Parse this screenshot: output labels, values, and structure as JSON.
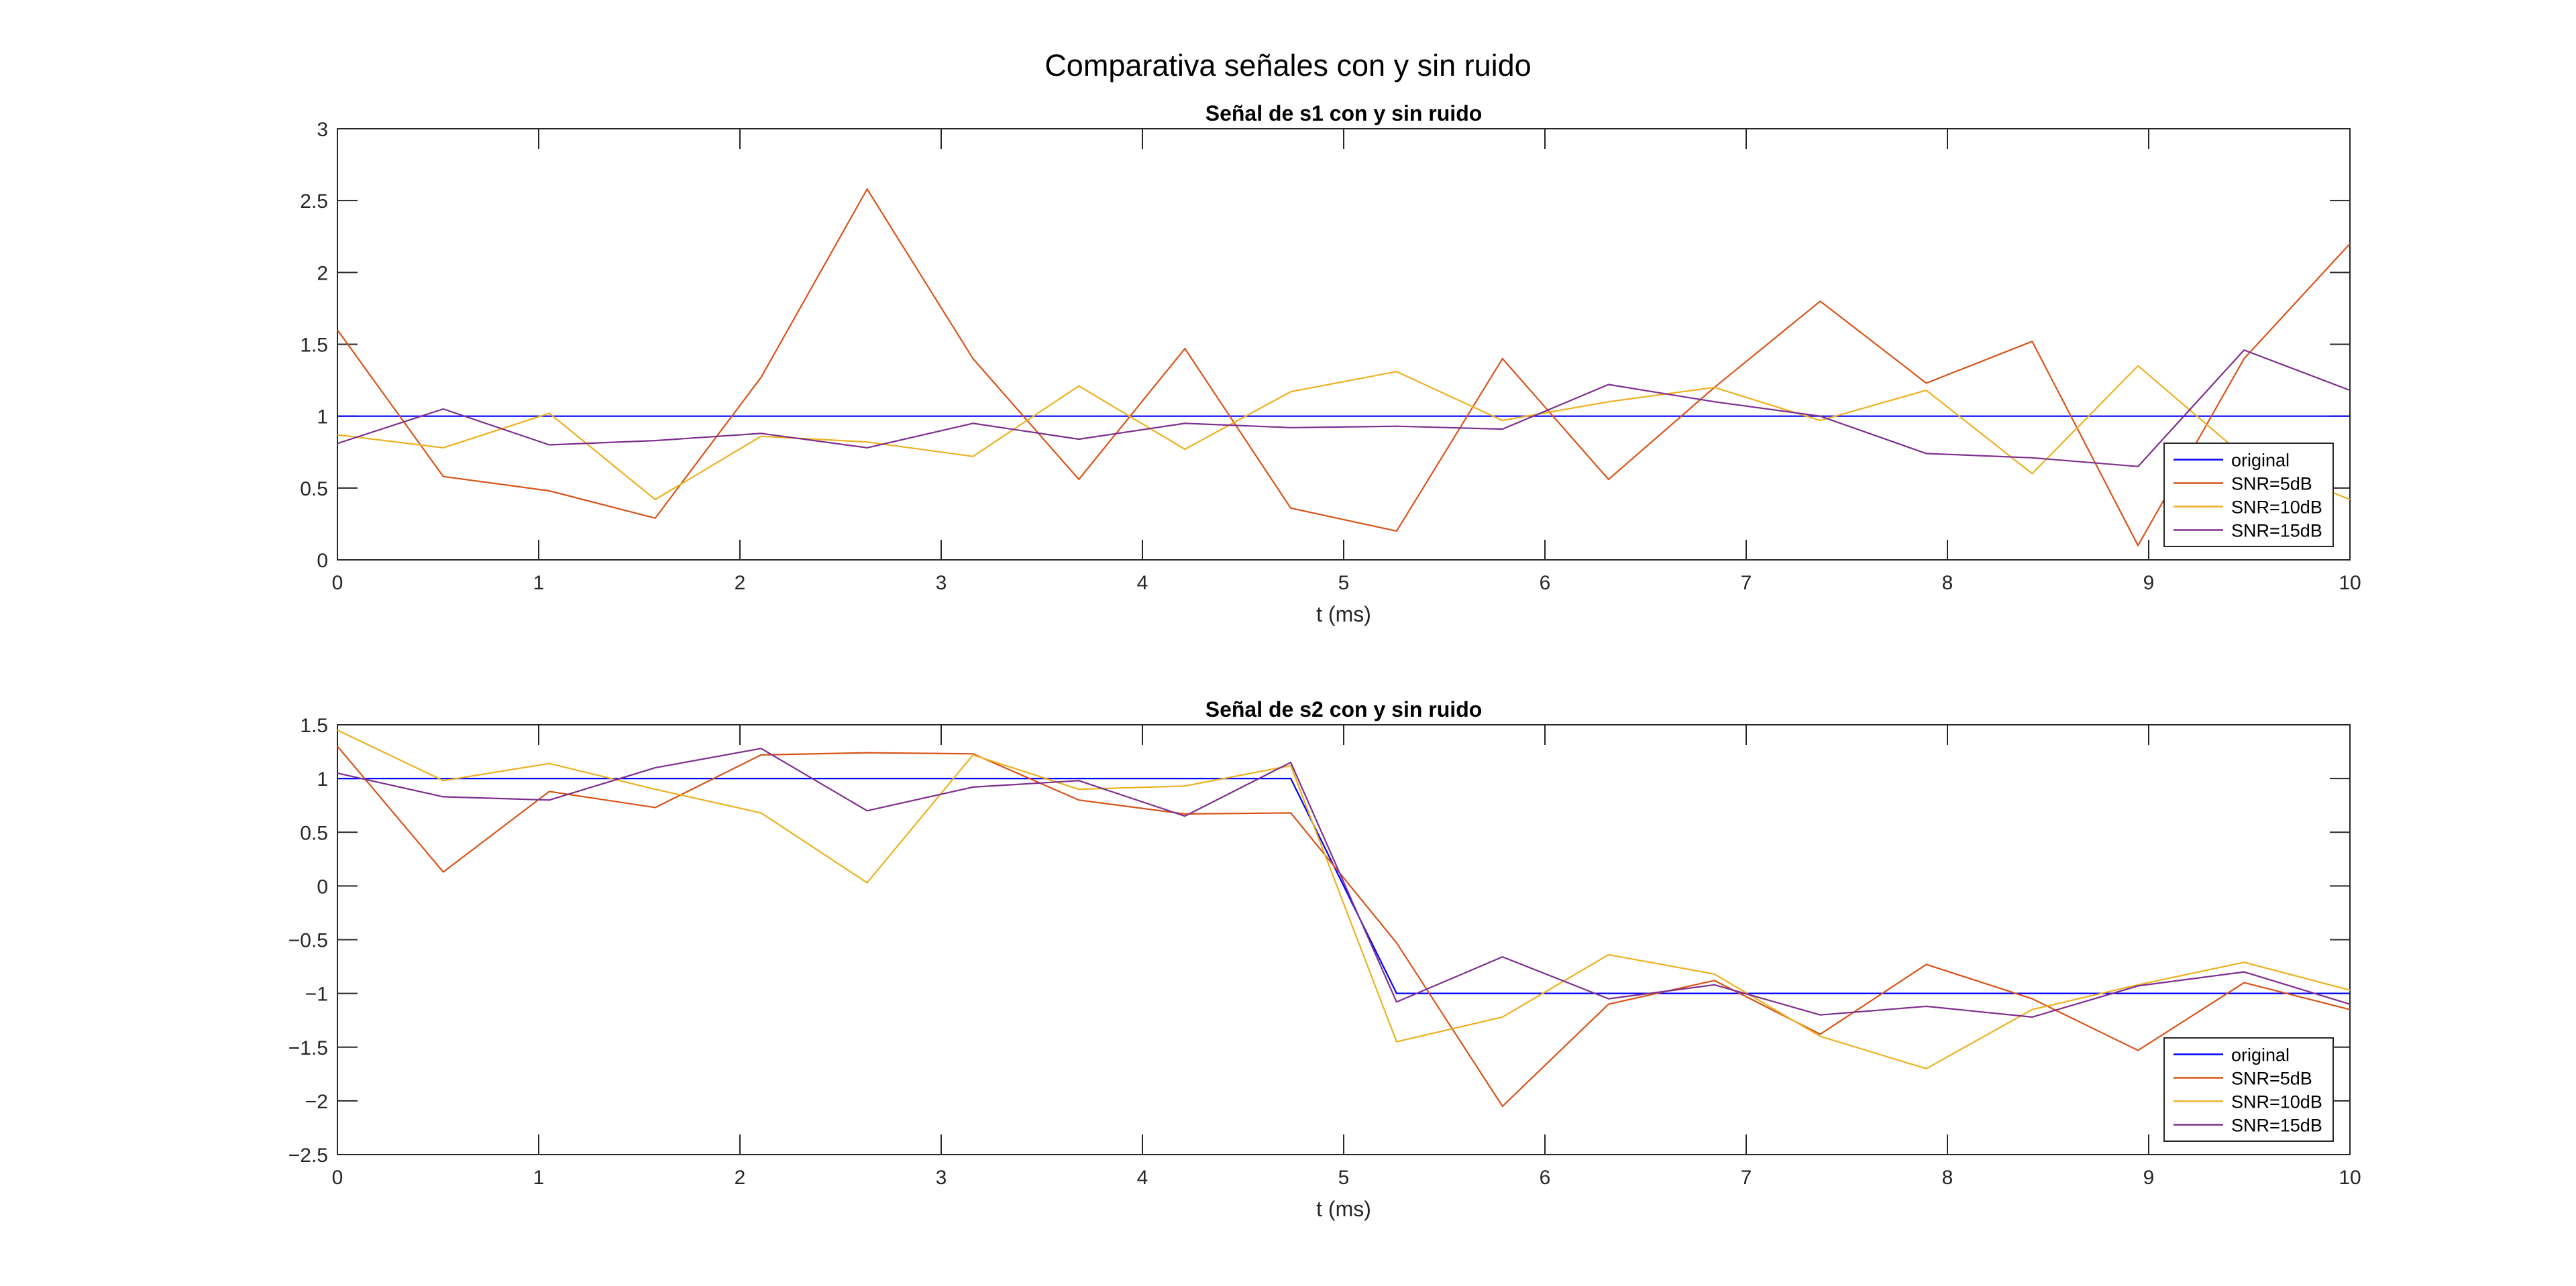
{
  "figure": {
    "title": "Comparativa señales con y sin ruido"
  },
  "chart_data": [
    {
      "type": "line",
      "title": "Señal de s1 con y sin ruido",
      "xlabel": "t (ms)",
      "ylabel": "",
      "xlim": [
        0,
        10
      ],
      "ylim": [
        0,
        3
      ],
      "xticks": [
        0,
        1,
        2,
        3,
        4,
        5,
        6,
        7,
        8,
        9,
        10
      ],
      "yticks": [
        0,
        0.5,
        1,
        1.5,
        2,
        2.5,
        3
      ],
      "legend_position": "bottom-right",
      "grid": false,
      "x": [
        0,
        0.526,
        1.053,
        1.579,
        2.105,
        2.632,
        3.158,
        3.684,
        4.211,
        4.737,
        5.263,
        5.789,
        6.316,
        6.842,
        7.368,
        7.895,
        8.421,
        8.947,
        9.474,
        10
      ],
      "series": [
        {
          "name": "original",
          "color": "#0000ff",
          "values": [
            1,
            1,
            1,
            1,
            1,
            1,
            1,
            1,
            1,
            1,
            1,
            1,
            1,
            1,
            1,
            1,
            1,
            1,
            1,
            1
          ]
        },
        {
          "name": "SNR=5dB",
          "color": "#d95319",
          "values": [
            1.6,
            0.58,
            0.48,
            0.29,
            1.27,
            2.58,
            1.4,
            0.56,
            1.47,
            0.36,
            0.2,
            1.4,
            0.56,
            1.2,
            1.8,
            1.23,
            1.52,
            0.1,
            1.4,
            2.2
          ]
        },
        {
          "name": "SNR=10dB",
          "color": "#edb120",
          "values": [
            0.87,
            0.78,
            1.02,
            0.42,
            0.86,
            0.82,
            0.72,
            1.21,
            0.77,
            1.17,
            1.31,
            0.97,
            1.1,
            1.2,
            0.97,
            1.18,
            0.6,
            1.35,
            0.72,
            0.42
          ]
        },
        {
          "name": "SNR=15dB",
          "color": "#7e2f8e",
          "values": [
            0.81,
            1.05,
            0.8,
            0.83,
            0.88,
            0.78,
            0.95,
            0.84,
            0.95,
            0.92,
            0.93,
            0.91,
            1.22,
            1.1,
            1.0,
            0.74,
            0.71,
            0.65,
            1.46,
            1.18
          ]
        }
      ]
    },
    {
      "type": "line",
      "title": "Señal de s2 con y sin ruido",
      "xlabel": "t (ms)",
      "ylabel": "",
      "xlim": [
        0,
        10
      ],
      "ylim": [
        -2.5,
        1.5
      ],
      "xticks": [
        0,
        1,
        2,
        3,
        4,
        5,
        6,
        7,
        8,
        9,
        10
      ],
      "yticks": [
        -2.5,
        -2,
        -1.5,
        -1,
        -0.5,
        0,
        0.5,
        1,
        1.5
      ],
      "legend_position": "bottom-right",
      "grid": false,
      "x": [
        0,
        0.526,
        1.053,
        1.579,
        2.105,
        2.632,
        3.158,
        3.684,
        4.211,
        4.737,
        5.263,
        5.789,
        6.316,
        6.842,
        7.368,
        7.895,
        8.421,
        8.947,
        9.474,
        10
      ],
      "series": [
        {
          "name": "original",
          "color": "#0000ff",
          "values": [
            1,
            1,
            1,
            1,
            1,
            1,
            1,
            1,
            1,
            1,
            -1,
            -1,
            -1,
            -1,
            -1,
            -1,
            -1,
            -1,
            -1,
            -1
          ]
        },
        {
          "name": "SNR=5dB",
          "color": "#d95319",
          "values": [
            1.3,
            0.13,
            0.88,
            0.73,
            1.22,
            1.24,
            1.23,
            0.8,
            0.67,
            0.68,
            -0.53,
            -2.05,
            -1.1,
            -0.88,
            -1.38,
            -0.73,
            -1.05,
            -1.53,
            -0.9,
            -1.15
          ]
        },
        {
          "name": "SNR=10dB",
          "color": "#edb120",
          "values": [
            1.45,
            0.98,
            1.14,
            0.9,
            0.68,
            0.03,
            1.22,
            0.9,
            0.93,
            1.12,
            -1.45,
            -1.22,
            -0.64,
            -0.82,
            -1.4,
            -1.7,
            -1.15,
            -0.92,
            -0.71,
            -0.97
          ]
        },
        {
          "name": "SNR=15dB",
          "color": "#7e2f8e",
          "values": [
            1.05,
            0.83,
            0.8,
            1.1,
            1.28,
            0.7,
            0.92,
            0.98,
            0.65,
            1.15,
            -1.08,
            -0.66,
            -1.05,
            -0.92,
            -1.2,
            -1.12,
            -1.22,
            -0.93,
            -0.8,
            -1.1
          ]
        }
      ]
    }
  ]
}
